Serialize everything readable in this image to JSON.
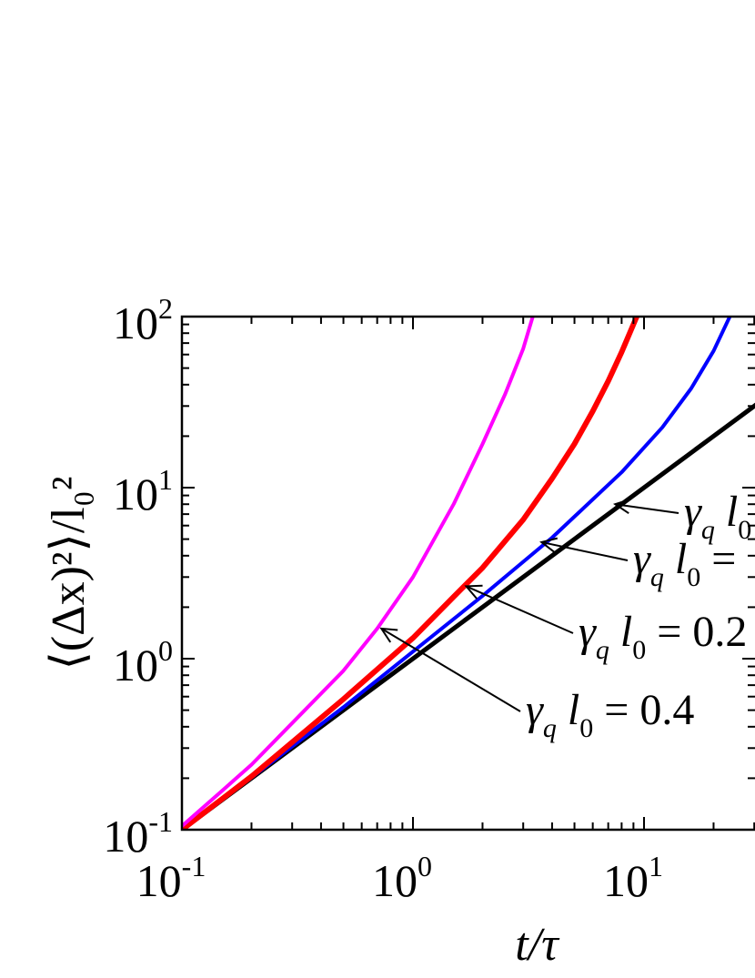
{
  "chart_data": {
    "type": "line",
    "xscale": "log",
    "yscale": "log",
    "xlim": [
      0.1,
      50
    ],
    "ylim": [
      0.1,
      100
    ],
    "grid": false,
    "xlabel": "t/τ",
    "ylabel": "⟨(Δx)²⟩/l₀²",
    "xticks": [
      {
        "base": "10",
        "exp": "-1",
        "value": 0.1
      },
      {
        "base": "10",
        "exp": "0",
        "value": 1
      },
      {
        "base": "10",
        "exp": "1",
        "value": 10
      }
    ],
    "yticks": [
      {
        "base": "10",
        "exp": "-1",
        "value": 0.1
      },
      {
        "base": "10",
        "exp": "0",
        "value": 1
      },
      {
        "base": "10",
        "exp": "1",
        "value": 10
      },
      {
        "base": "10",
        "exp": "2",
        "value": 100
      }
    ],
    "series": [
      {
        "color": "#000000",
        "x": [
          0.1,
          0.2,
          0.5,
          1,
          2,
          5,
          10,
          20,
          50
        ],
        "y": [
          0.1,
          0.2,
          0.5,
          1,
          2,
          5,
          10,
          20,
          50
        ]
      },
      {
        "color": "#0000ff",
        "x": [
          0.1,
          0.2,
          0.5,
          1,
          2,
          4,
          8,
          12,
          16,
          20,
          23.5
        ],
        "y": [
          0.1,
          0.202,
          0.52,
          1.1,
          2.33,
          5.1,
          12.3,
          22.5,
          38,
          63,
          100
        ]
      },
      {
        "color": "#ff0000",
        "x": [
          0.1,
          0.2,
          0.5,
          1,
          1.5,
          2,
          3,
          4,
          5,
          6,
          7,
          8,
          9.3
        ],
        "y": [
          0.1,
          0.205,
          0.58,
          1.32,
          2.3,
          3.4,
          6.5,
          11.3,
          18,
          28,
          42,
          62,
          100
        ]
      },
      {
        "color": "#ff00ff",
        "x": [
          0.1,
          0.15,
          0.2,
          0.3,
          0.5,
          0.7,
          1,
          1.5,
          2,
          2.5,
          3,
          3.3
        ],
        "y": [
          0.105,
          0.17,
          0.24,
          0.42,
          0.85,
          1.5,
          3,
          8,
          18,
          35,
          65,
          100
        ]
      }
    ],
    "annotations": [
      {
        "prefix": "γ",
        "sub_q": "q",
        "mid": "l",
        "sub_0": "0",
        "suffix": "",
        "arrow_to": [
          7.5,
          8.0
        ],
        "color": "#000000"
      },
      {
        "prefix": "γ",
        "sub_q": "q",
        "mid": "l",
        "sub_0": "0",
        "suffix": " =",
        "arrow_to": [
          3.6,
          4.8
        ],
        "color": "#0000ff"
      },
      {
        "prefix": "γ",
        "sub_q": "q",
        "mid": "l",
        "sub_0": "0",
        "suffix": " = 0.2",
        "arrow_to": [
          1.7,
          2.65
        ],
        "color": "#ff0000"
      },
      {
        "prefix": "γ",
        "sub_q": "q",
        "mid": "l",
        "sub_0": "0",
        "suffix": " = 0.4",
        "arrow_to": [
          0.73,
          1.5
        ],
        "color": "#ff00ff"
      }
    ]
  }
}
